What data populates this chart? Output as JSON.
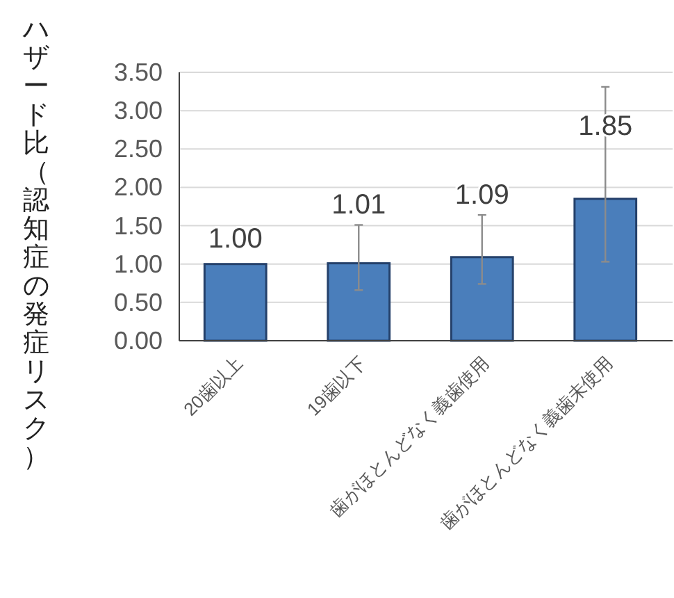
{
  "chart_data": {
    "type": "bar",
    "ylabel": "ハザード比（認知症の発症リスク）",
    "categories": [
      "20歯以上",
      "19歯以下",
      "歯がほとんどなく義歯使用",
      "歯がほとんどなく義歯未使用"
    ],
    "values": [
      1.0,
      1.01,
      1.09,
      1.85
    ],
    "value_labels": [
      "1.00",
      "1.01",
      "1.09",
      "1.85"
    ],
    "errors": [
      null,
      [
        0.66,
        1.51
      ],
      [
        0.74,
        1.64
      ],
      [
        1.03,
        3.31
      ]
    ],
    "color": "#4a7ebb",
    "ylim": [
      0,
      3.5
    ],
    "yticks": [
      {
        "value": 0,
        "label": "0.00"
      },
      {
        "value": 0.5,
        "label": "0.50"
      },
      {
        "value": 1,
        "label": "1.00"
      },
      {
        "value": 1.5,
        "label": "1.50"
      },
      {
        "value": 2,
        "label": "2.00"
      },
      {
        "value": 2.5,
        "label": "2.50"
      },
      {
        "value": 3,
        "label": "3.00"
      },
      {
        "value": 3.5,
        "label": "3.50"
      }
    ],
    "grid": "y"
  }
}
